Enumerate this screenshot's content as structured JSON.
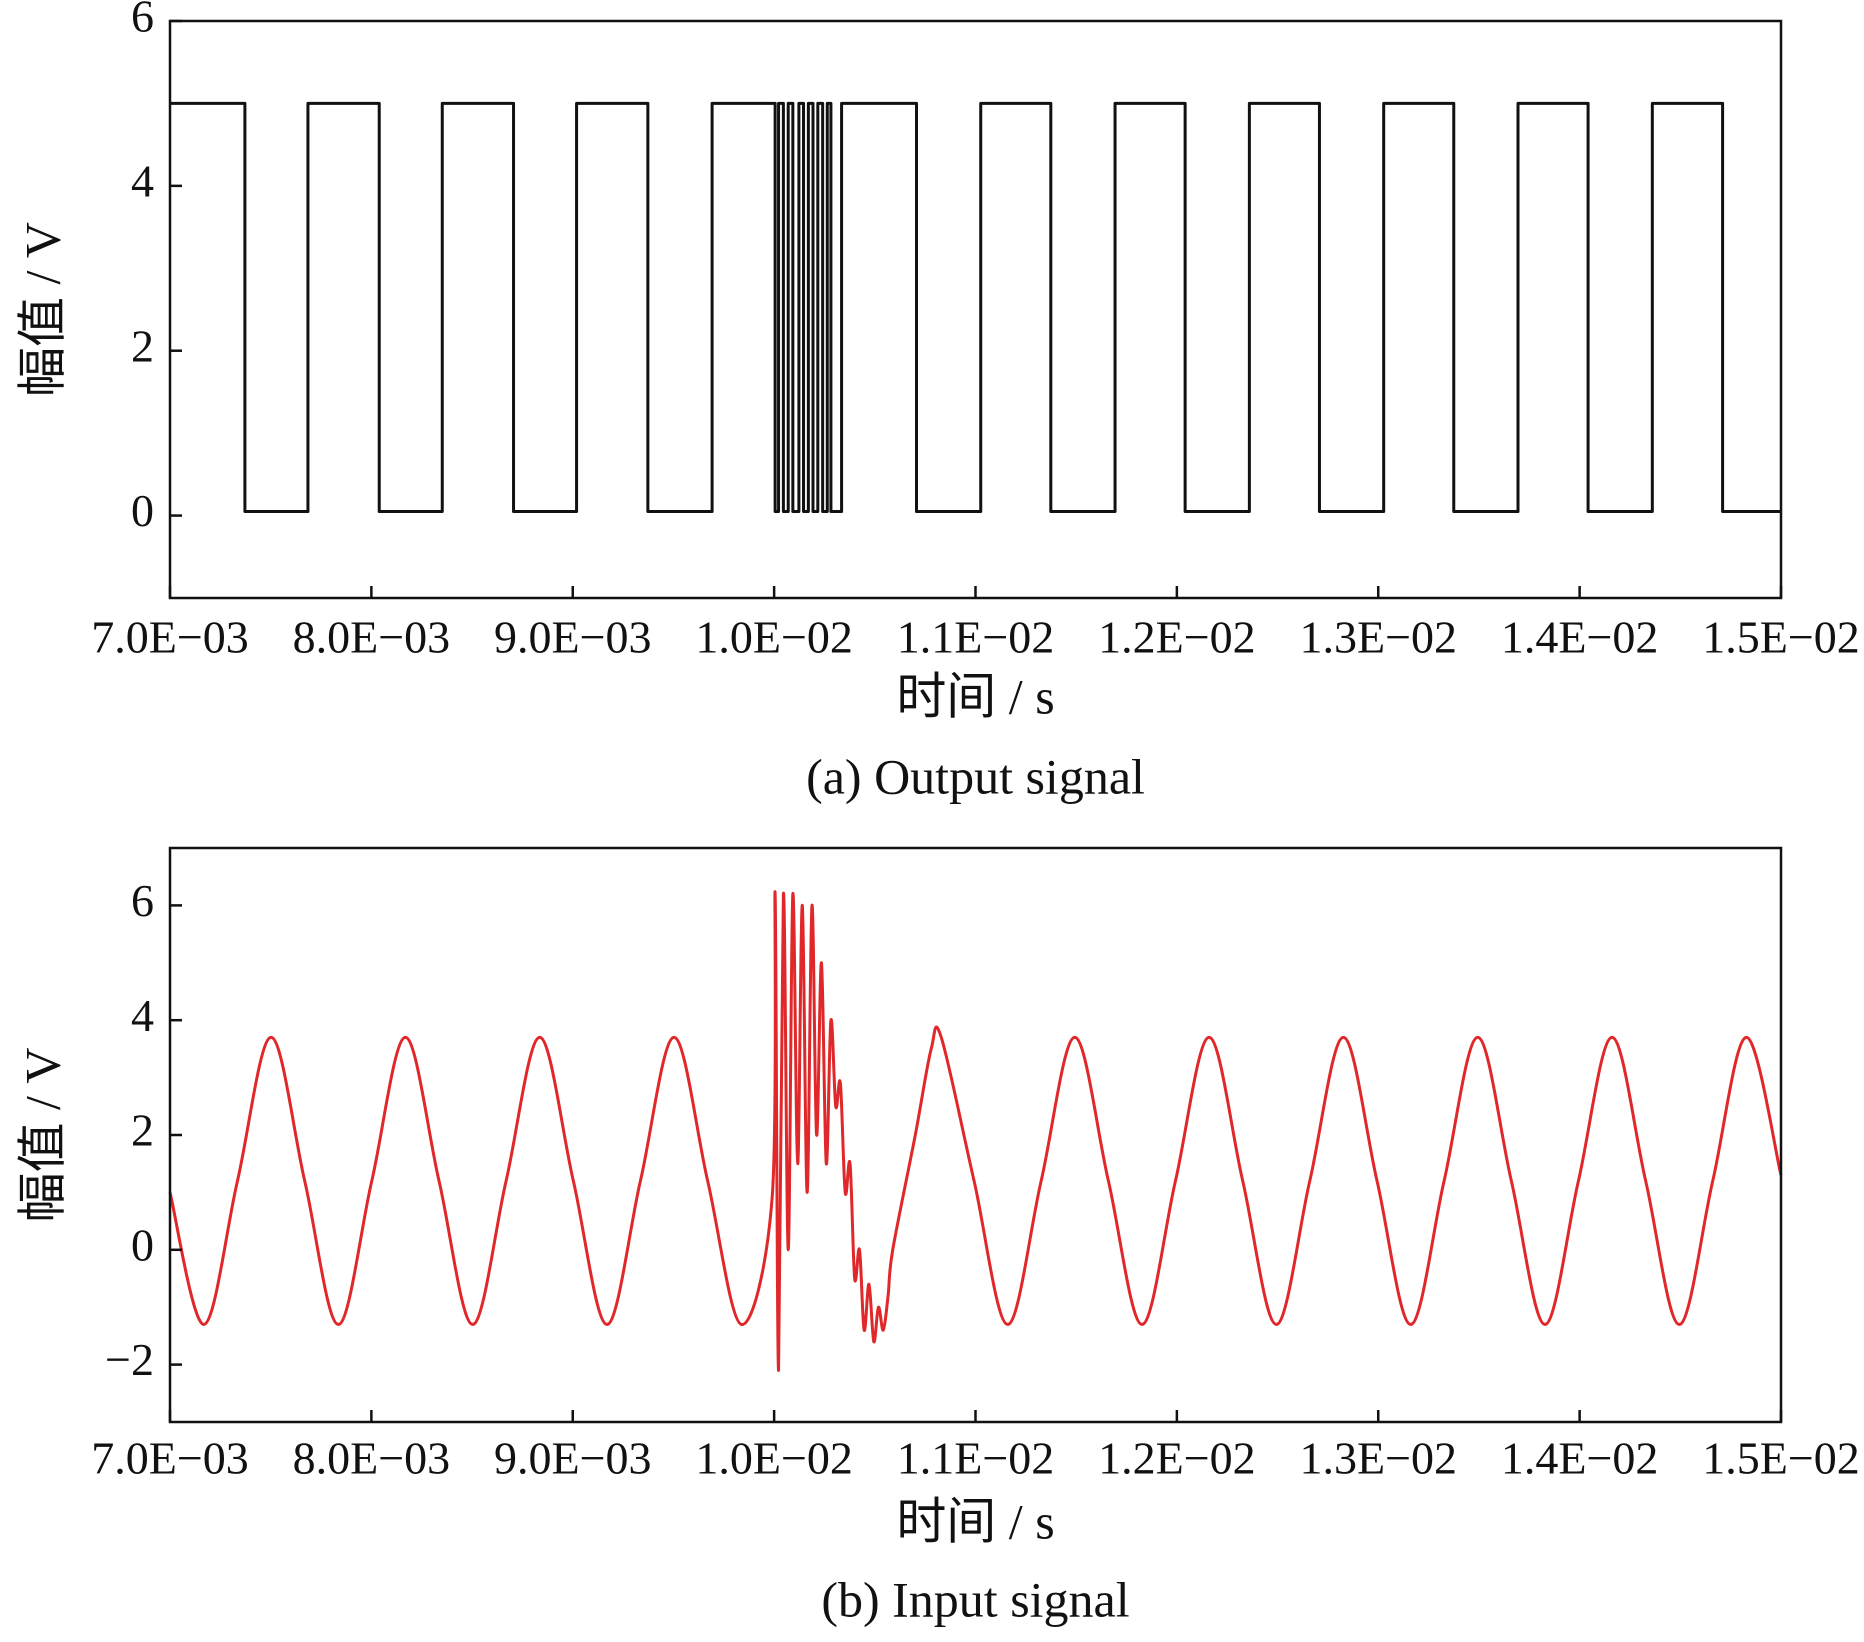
{
  "chart_data": [
    {
      "type": "line",
      "caption": "(a) Output signal",
      "x_label": "时间 / s",
      "y_label": "幅值 / V",
      "xlim": [
        0.007,
        0.015
      ],
      "xticks": [
        {
          "value": 0.007,
          "label": "7.0E−03"
        },
        {
          "value": 0.008,
          "label": "8.0E−03"
        },
        {
          "value": 0.009,
          "label": "9.0E−03"
        },
        {
          "value": 0.01,
          "label": "1.0E−02"
        },
        {
          "value": 0.011,
          "label": "1.1E−02"
        },
        {
          "value": 0.012,
          "label": "1.2E−02"
        },
        {
          "value": 0.013,
          "label": "1.3E−02"
        },
        {
          "value": 0.014,
          "label": "1.4E−02"
        },
        {
          "value": 0.015,
          "label": "1.5E−02"
        }
      ],
      "ylim": [
        -1,
        6
      ],
      "yticks": [
        0,
        2,
        4,
        6
      ],
      "smooth": false,
      "x": [
        0.007,
        0.007372,
        0.007372,
        0.007685,
        0.007685,
        0.008039,
        0.008039,
        0.008352,
        0.008352,
        0.008706,
        0.008706,
        0.009019,
        0.009019,
        0.009373,
        0.009373,
        0.009692,
        0.009692,
        0.010005,
        0.010005,
        0.010022,
        0.010022,
        0.010046,
        0.010046,
        0.01007,
        0.01007,
        0.010093,
        0.010093,
        0.010123,
        0.010123,
        0.010146,
        0.010146,
        0.01017,
        0.01017,
        0.010193,
        0.010193,
        0.010217,
        0.010217,
        0.010241,
        0.010241,
        0.010264,
        0.010264,
        0.010282,
        0.010282,
        0.010335,
        0.010335,
        0.010707,
        0.010707,
        0.011026,
        0.011026,
        0.011374,
        0.011374,
        0.011693,
        0.011693,
        0.012041,
        0.012041,
        0.01236,
        0.01236,
        0.012708,
        0.012708,
        0.013027,
        0.013027,
        0.013375,
        0.013375,
        0.013694,
        0.013694,
        0.014042,
        0.014042,
        0.014361,
        0.014361,
        0.01471,
        0.01471,
        0.015
      ],
      "series": [
        {
          "color": "#111111",
          "values": [
            5,
            5,
            0.05,
            0.05,
            5,
            5,
            0.05,
            0.05,
            5,
            5,
            0.05,
            0.05,
            5,
            5,
            0.05,
            0.05,
            5,
            5,
            0.05,
            0.05,
            5,
            5,
            0.05,
            0.05,
            5,
            5,
            0.05,
            0.05,
            5,
            5,
            0.05,
            0.05,
            5,
            5,
            0.05,
            0.05,
            5,
            5,
            0.05,
            0.05,
            5,
            5,
            0.05,
            0.05,
            5,
            5,
            0.05,
            0.05,
            5,
            5,
            0.05,
            0.05,
            5,
            5,
            0.05,
            0.05,
            5,
            5,
            0.05,
            0.05,
            5,
            5,
            0.05,
            0.05,
            5,
            5,
            0.05,
            0.05,
            5,
            5,
            0.05,
            0.05
          ]
        }
      ]
    },
    {
      "type": "line",
      "caption": "(b) Input signal",
      "x_label": "时间 / s",
      "y_label": "幅值 / V",
      "xlim": [
        0.007,
        0.015
      ],
      "xticks": [
        {
          "value": 0.007,
          "label": "7.0E−03"
        },
        {
          "value": 0.008,
          "label": "8.0E−03"
        },
        {
          "value": 0.009,
          "label": "9.0E−03"
        },
        {
          "value": 0.01,
          "label": "1.0E−02"
        },
        {
          "value": 0.011,
          "label": "1.1E−02"
        },
        {
          "value": 0.012,
          "label": "1.2E−02"
        },
        {
          "value": 0.013,
          "label": "1.3E−02"
        },
        {
          "value": 0.014,
          "label": "1.4E−02"
        },
        {
          "value": 0.015,
          "label": "1.5E−02"
        }
      ],
      "ylim": [
        -3,
        7
      ],
      "yticks": [
        {
          "value": -2,
          "label": "−2"
        },
        0,
        2,
        4,
        6
      ],
      "smooth": true,
      "x": [
        0.007,
        0.007169,
        0.007335,
        0.007502,
        0.007669,
        0.007836,
        0.008002,
        0.008169,
        0.008336,
        0.008503,
        0.008669,
        0.008836,
        0.009003,
        0.00917,
        0.009336,
        0.009503,
        0.00967,
        0.009837,
        0.00999,
        0.010005,
        0.010022,
        0.010046,
        0.01007,
        0.010093,
        0.010117,
        0.01014,
        0.010164,
        0.010188,
        0.010211,
        0.010235,
        0.010259,
        0.010282,
        0.010306,
        0.010329,
        0.010353,
        0.010377,
        0.0104,
        0.010424,
        0.010447,
        0.010471,
        0.010495,
        0.010518,
        0.010542,
        0.010566,
        0.010589,
        0.010701,
        0.01078,
        0.01083,
        0.010993,
        0.01116,
        0.011326,
        0.011493,
        0.01166,
        0.011827,
        0.011993,
        0.01216,
        0.012327,
        0.012494,
        0.01266,
        0.012827,
        0.012994,
        0.013161,
        0.013327,
        0.013494,
        0.013661,
        0.013828,
        0.013994,
        0.014161,
        0.014328,
        0.014495,
        0.014661,
        0.014828,
        0.015
      ],
      "series": [
        {
          "color": "#e0282a",
          "values": [
            1.0,
            -1.3,
            1.2,
            3.7,
            1.2,
            -1.3,
            1.2,
            3.7,
            1.2,
            -1.3,
            1.2,
            3.7,
            1.2,
            -1.3,
            1.2,
            3.7,
            1.2,
            -1.3,
            0.9,
            6.2,
            -2.1,
            6.2,
            0.0,
            6.2,
            1.5,
            6.0,
            1.0,
            6.0,
            2.0,
            5.0,
            1.5,
            4.0,
            2.5,
            2.9,
            1.0,
            1.5,
            -0.5,
            0.0,
            -1.4,
            -0.6,
            -1.6,
            -1.0,
            -1.4,
            -0.8,
            0.0,
            2.0,
            3.5,
            3.7,
            1.2,
            -1.3,
            1.2,
            3.7,
            1.2,
            -1.3,
            1.2,
            3.7,
            1.2,
            -1.3,
            1.2,
            3.7,
            1.2,
            -1.3,
            1.2,
            3.7,
            1.2,
            -1.3,
            1.2,
            3.7,
            1.2,
            -1.3,
            1.2,
            3.7,
            1.3
          ]
        }
      ]
    }
  ]
}
